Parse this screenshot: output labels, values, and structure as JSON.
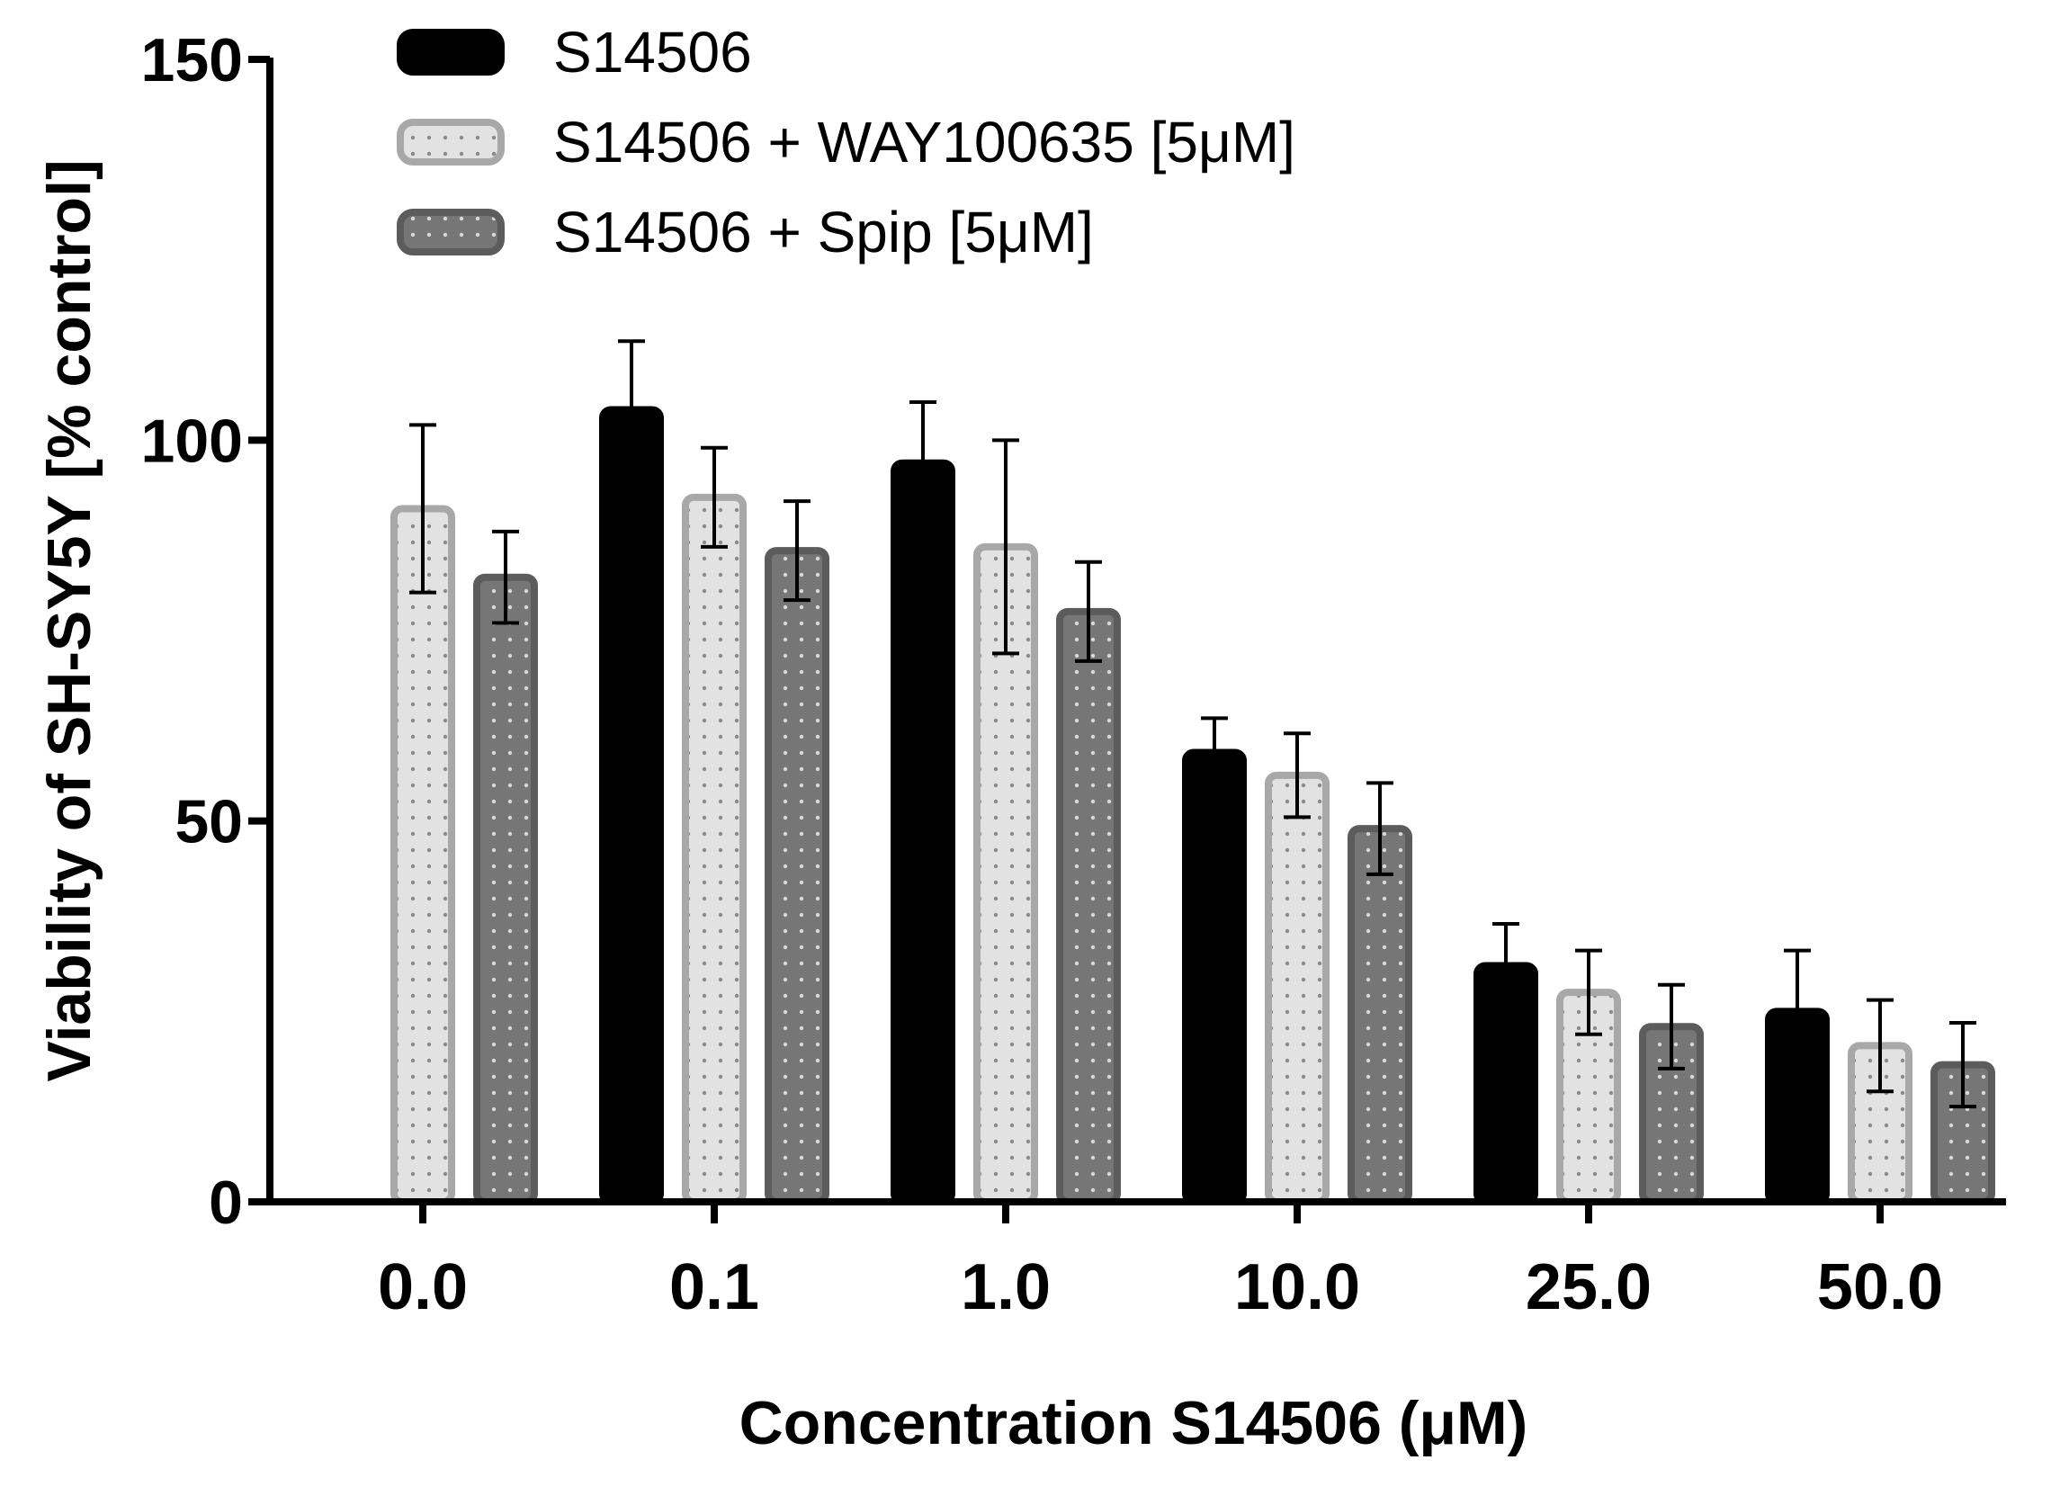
{
  "chart_data": {
    "type": "bar",
    "title": "",
    "xlabel": "Concentration S14506 (μM)",
    "ylabel": "Viability of SH-SY5Y [% control]",
    "ylim": [
      0,
      150
    ],
    "yticks": [
      "0",
      "50",
      "100",
      "150"
    ],
    "ytick_values": [
      0,
      50,
      100,
      150
    ],
    "categories": [
      "0.0",
      "0.1",
      "1.0",
      "10.0",
      "25.0",
      "50.0"
    ],
    "legend_position": "top-left",
    "series": [
      {
        "name": "S14506",
        "values": [
          null,
          104,
          97,
          59,
          31,
          25
        ],
        "errors": [
          null,
          9,
          8,
          4.5,
          5.5,
          8
        ],
        "fill": "#000000",
        "stroke": "#000000",
        "pattern": "solid"
      },
      {
        "name": "S14506 + WAY100635 [5μM]",
        "values": [
          91,
          92.5,
          86,
          56,
          27.5,
          20.5
        ],
        "errors": [
          11,
          6.5,
          14,
          5.5,
          5.5,
          6
        ],
        "fill": "#e2e2e2",
        "stroke": "#a8a8a8",
        "pattern": "dots-light"
      },
      {
        "name": "S14506 + Spip [5μM]",
        "values": [
          82,
          85.5,
          77.5,
          49,
          23,
          18
        ],
        "errors": [
          6,
          6.5,
          6.5,
          6,
          5.5,
          5.5
        ],
        "fill": "#767676",
        "stroke": "#5c5c5c",
        "pattern": "dots-dark"
      }
    ]
  }
}
